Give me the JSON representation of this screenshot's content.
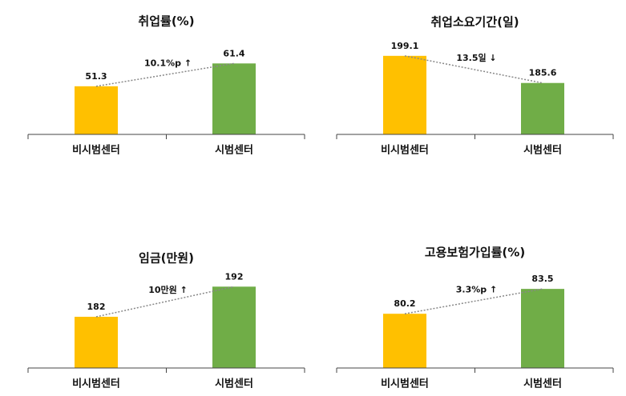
{
  "chart_data": [
    {
      "type": "bar",
      "title": "취업률(%)",
      "categories": [
        "비시범센터",
        "시범센터"
      ],
      "values": [
        51.3,
        61.4
      ],
      "colors": [
        "#ffc000",
        "#70ad47"
      ],
      "annotation": "10.1%p ↑",
      "ylim": [
        30,
        70
      ]
    },
    {
      "type": "bar",
      "title": "취업소요기간(일)",
      "categories": [
        "비시범센터",
        "시범센터"
      ],
      "values": [
        199.1,
        185.6
      ],
      "colors": [
        "#ffc000",
        "#70ad47"
      ],
      "annotation": "13.5일 ↓",
      "ylim": [
        160,
        205
      ]
    },
    {
      "type": "bar",
      "title": "임금(만원)",
      "categories": [
        "비시범센터",
        "시범센터"
      ],
      "values": [
        182,
        192
      ],
      "colors": [
        "#ffc000",
        "#70ad47"
      ],
      "annotation": "10만원 ↑",
      "ylim": [
        165,
        195
      ]
    },
    {
      "type": "bar",
      "title": "고용보험가입률(%)",
      "categories": [
        "비시범센터",
        "시범센터"
      ],
      "values": [
        80.2,
        83.5
      ],
      "colors": [
        "#ffc000",
        "#70ad47"
      ],
      "annotation": "3.3%p ↑",
      "ylim": [
        73,
        85
      ]
    }
  ]
}
